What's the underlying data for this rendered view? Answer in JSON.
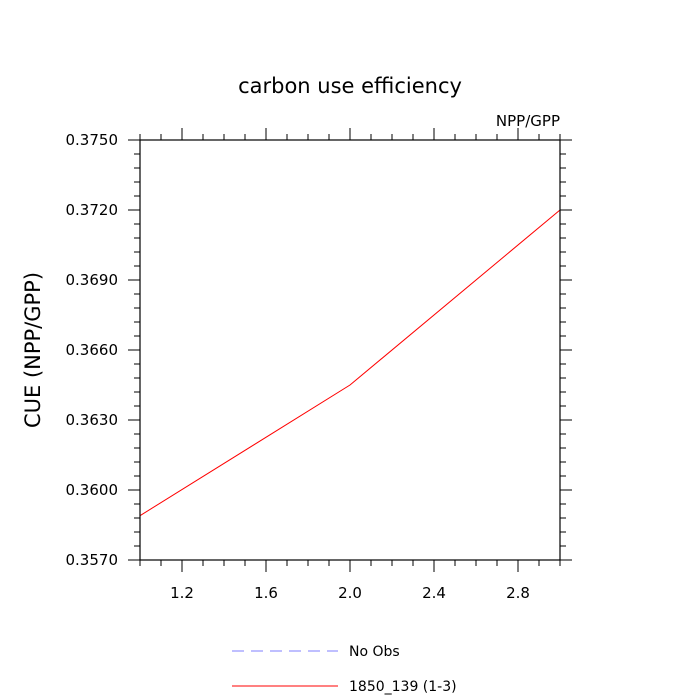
{
  "chart_data": {
    "type": "line",
    "title": "carbon use efficiency",
    "subtitle_right": "NPP/GPP",
    "xlabel": "",
    "ylabel": "CUE  (NPP/GPP)",
    "xlim": [
      1.0,
      3.0
    ],
    "ylim": [
      0.357,
      0.375
    ],
    "xticks": [
      1.2,
      1.6,
      2.0,
      2.4,
      2.8
    ],
    "xtick_labels": [
      "1.2",
      "1.6",
      "2.0",
      "2.4",
      "2.8"
    ],
    "yticks": [
      0.357,
      0.36,
      0.363,
      0.366,
      0.369,
      0.372,
      0.375
    ],
    "ytick_labels": [
      "0.3570",
      "0.3600",
      "0.3630",
      "0.3660",
      "0.3690",
      "0.3720",
      "0.3750"
    ],
    "grid": false,
    "legend_placement": "bottom-center",
    "series": [
      {
        "name": "No Obs",
        "x": [],
        "y": [],
        "color": "#7f7fff",
        "dash": "dashed"
      },
      {
        "name": "1850_139 (1-3)",
        "x": [
          1.0,
          2.0,
          3.0
        ],
        "y": [
          0.3589,
          0.3645,
          0.372
        ],
        "color": "#ff0000",
        "dash": "solid"
      }
    ]
  }
}
